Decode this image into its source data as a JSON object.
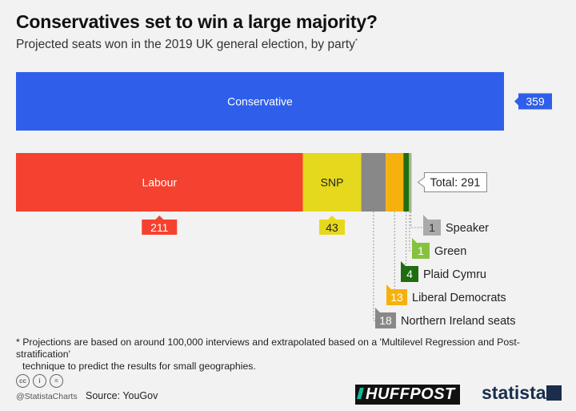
{
  "title": "Conservatives set to win a large majority?",
  "subtitle": "Projected seats won in the 2019 UK general election, by party",
  "subtitle_marker": "*",
  "note_line1": "* Projections are based on around 100,000 interviews and extrapolated based on a 'Multilevel Regression and Post-stratification'",
  "note_line2": "technique to predict the results for small geographies.",
  "handle": "@StatistaCharts",
  "source": "Source: YouGov",
  "brand_huffpost": "HUFFPOST",
  "brand_statista": "statista",
  "cc_icons": [
    "cc-icon",
    "by-icon",
    "nd-icon"
  ],
  "cc_labels": [
    "cc",
    "i",
    "="
  ],
  "chart_data": {
    "type": "bar",
    "stacked": true,
    "xlim": [
      0,
      359
    ],
    "bars": [
      {
        "segments": [
          {
            "name": "Conservative",
            "value": 359,
            "color": "#2f5fea",
            "label_inside": true
          }
        ]
      },
      {
        "total_label": "Total: 291",
        "segments": [
          {
            "name": "Labour",
            "value": 211,
            "color": "#f5412f",
            "label_inside": true
          },
          {
            "name": "SNP",
            "value": 43,
            "color": "#e6d81c",
            "label_inside": true
          },
          {
            "name": "Northern Ireland seats",
            "value": 18,
            "color": "#888888",
            "label_inside": false
          },
          {
            "name": "Liberal Democrats",
            "value": 13,
            "color": "#f7b10d",
            "label_inside": false
          },
          {
            "name": "Plaid Cymru",
            "value": 4,
            "color": "#1f6d10",
            "label_inside": false
          },
          {
            "name": "Green",
            "value": 1,
            "color": "#86c240",
            "label_inside": false
          },
          {
            "name": "Speaker",
            "value": 1,
            "color": "#aaaaaa",
            "label_inside": false
          }
        ]
      }
    ]
  }
}
